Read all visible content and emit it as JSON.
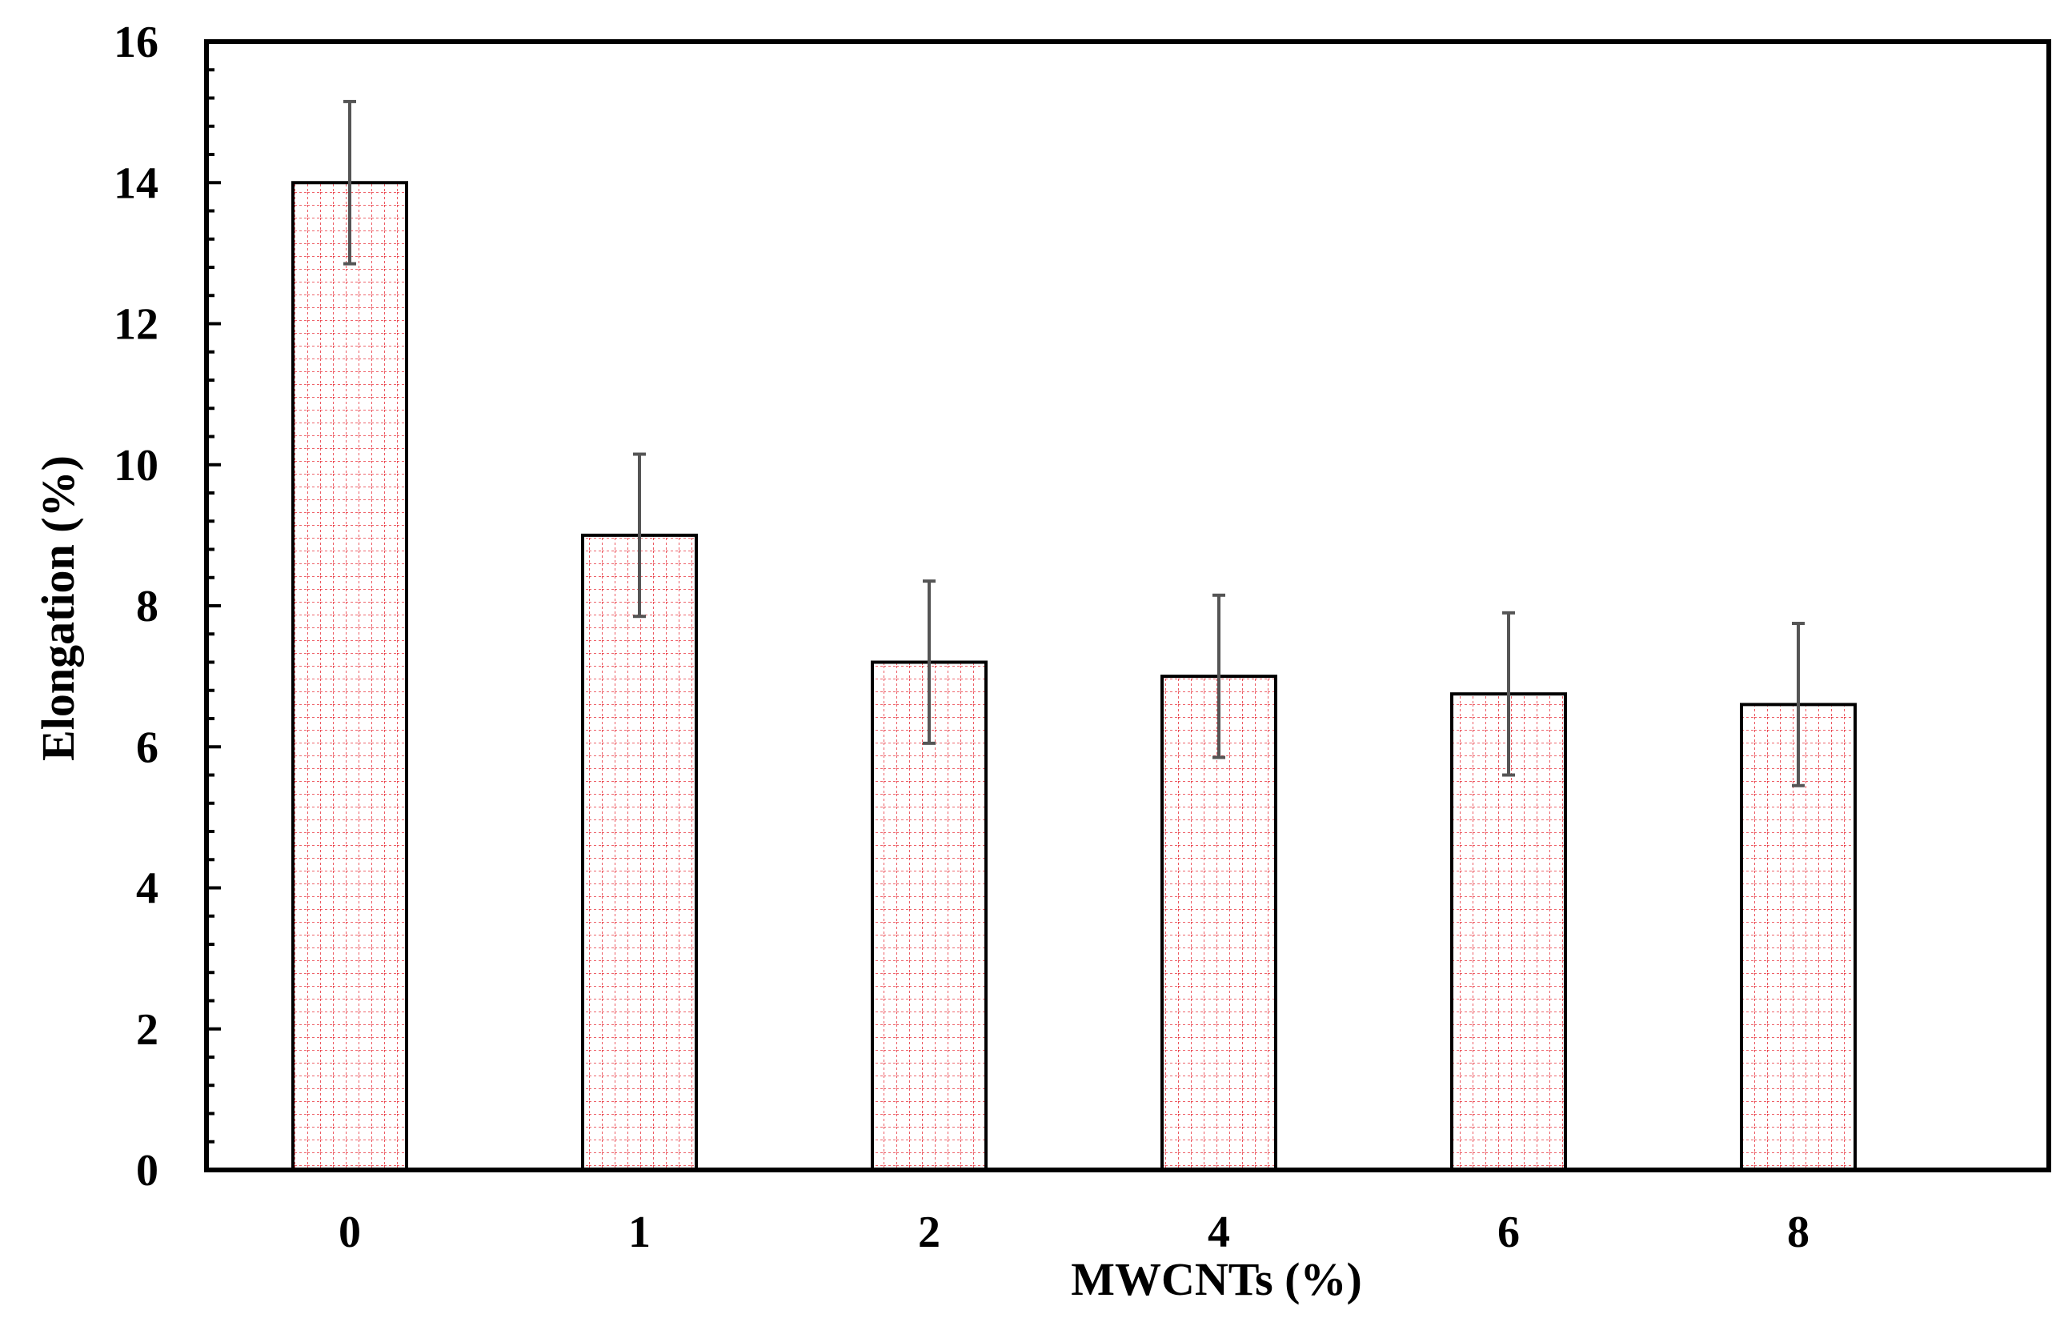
{
  "chart_data": {
    "type": "bar",
    "title": "",
    "xlabel": "MWCNTs  (%)",
    "ylabel": "Elongation (%)",
    "categories": [
      "0",
      "1",
      "2",
      "4",
      "6",
      "8"
    ],
    "values": [
      14.0,
      9.0,
      7.2,
      7.0,
      6.75,
      6.6
    ],
    "errors": [
      1.15,
      1.15,
      1.15,
      1.15,
      1.15,
      1.15
    ],
    "ylim": [
      0,
      16
    ],
    "yticks": [
      "0",
      "2",
      "4",
      "6",
      "8",
      "10",
      "12",
      "14",
      "16"
    ],
    "y_minor_step": 0.4,
    "grid": false,
    "legend": "none",
    "colors": {
      "bar_fill": "#ffffff",
      "bar_hatch": "#e8303a",
      "bar_edge": "#000000",
      "error_bar": "#555555",
      "axis": "#000000"
    }
  }
}
